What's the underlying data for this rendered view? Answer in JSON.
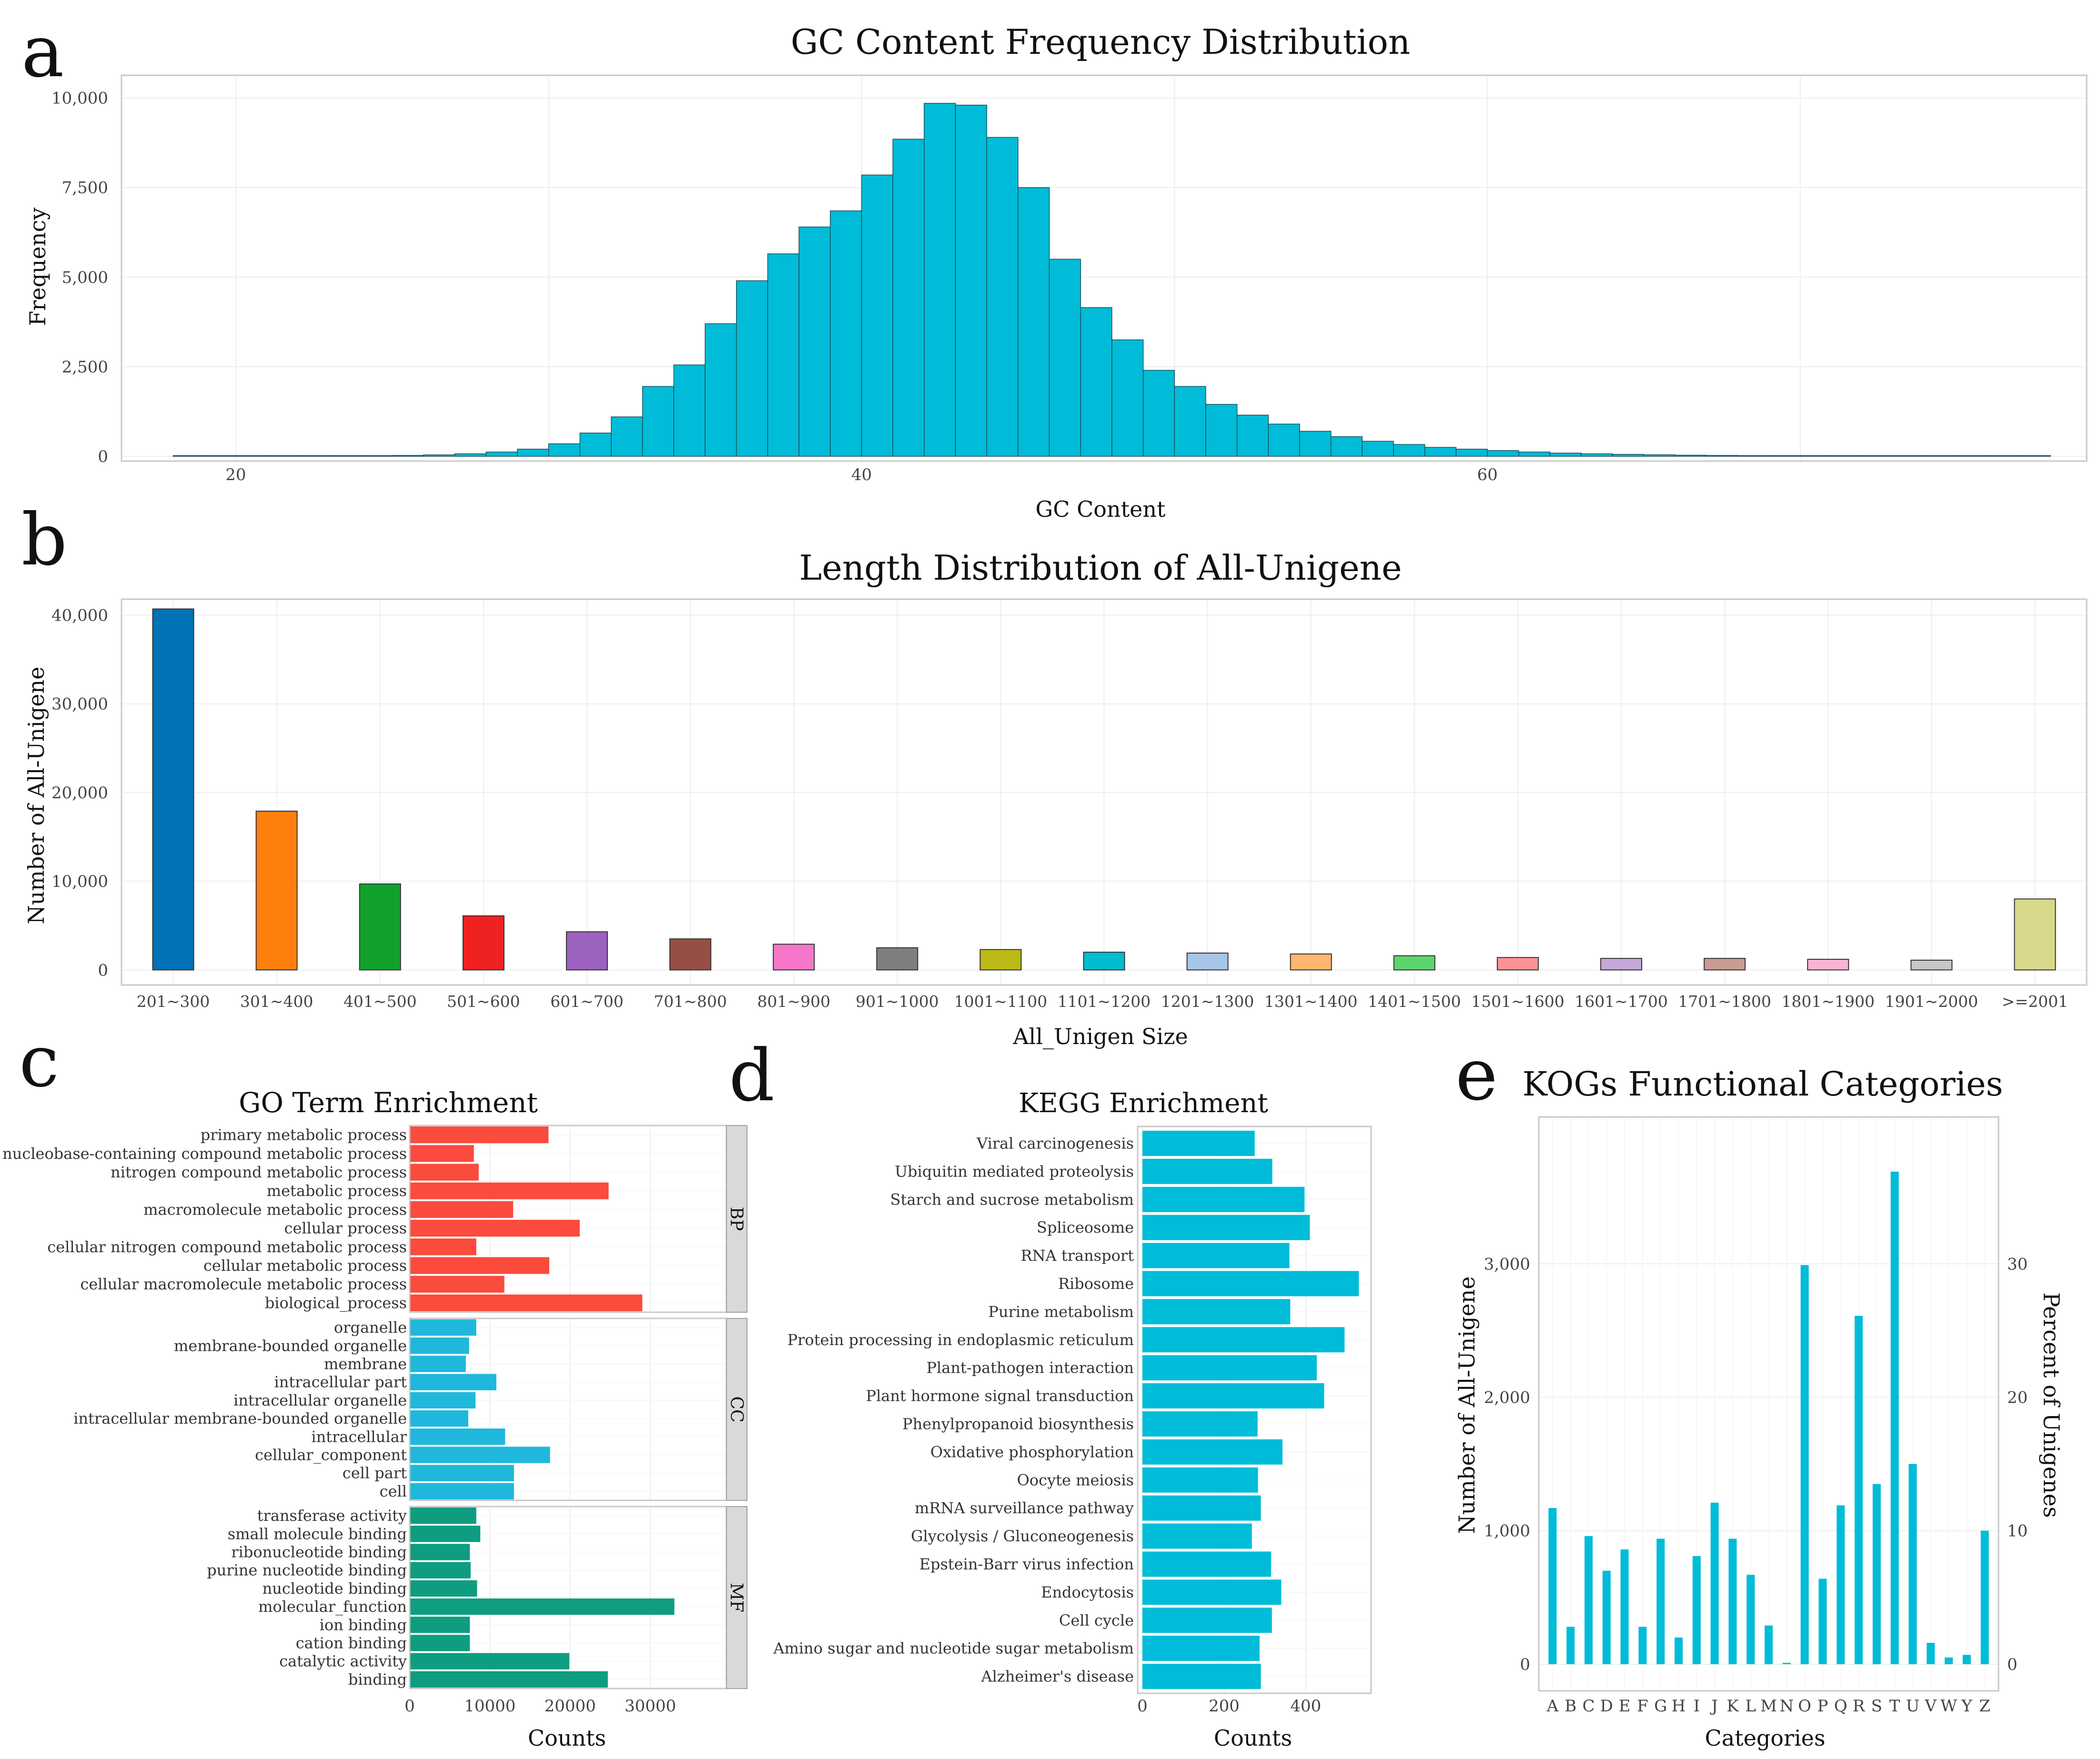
{
  "panel_labels": [
    "a",
    "b",
    "c",
    "d",
    "e"
  ],
  "colors": {
    "cyan": "#00BCD8",
    "bp": "#FB4B3C",
    "cc": "#1FB8DC",
    "mf": "#0E9D80",
    "frame": "#C8C8C8",
    "length_bars": [
      "#0072B5",
      "#FF7F0E",
      "#12A22C",
      "#EF2121",
      "#9D61C0",
      "#984F43",
      "#F677C9",
      "#7F7F7F",
      "#BBBA16",
      "#00BDCF",
      "#A6C5E8",
      "#FFB86E",
      "#5CD56D",
      "#FF9393",
      "#C3A8D8",
      "#C99C93",
      "#F8B5D3",
      "#C7C7C7",
      "#D9D98B"
    ]
  },
  "chart_data": [
    {
      "id": "a",
      "type": "bar",
      "title": "GC Content Frequency Distribution",
      "xlabel": "GC Content",
      "ylabel": "Frequency",
      "xlim": [
        16.5,
        79
      ],
      "ylim": [
        0,
        10500
      ],
      "x_ticks": [
        20,
        40,
        60
      ],
      "y_ticks": [
        0,
        2500,
        5000,
        7500,
        10000
      ],
      "y_tick_labels": [
        "0",
        "2,500",
        "5,000",
        "7,500",
        "10,000"
      ],
      "bin_width": 1,
      "bin_starts": [
        18,
        19,
        20,
        21,
        22,
        23,
        24,
        25,
        26,
        27,
        28,
        29,
        30,
        31,
        32,
        33,
        34,
        35,
        36,
        37,
        38,
        39,
        40,
        41,
        42,
        43,
        44,
        45,
        46,
        47,
        48,
        49,
        50,
        51,
        52,
        53,
        54,
        55,
        56,
        57,
        58,
        59,
        60,
        61,
        62,
        63,
        64,
        65,
        66,
        67,
        68,
        69,
        70,
        71,
        72,
        73,
        74,
        75,
        76,
        77
      ],
      "values": [
        2,
        3,
        3,
        5,
        8,
        10,
        15,
        25,
        40,
        70,
        120,
        200,
        350,
        650,
        1100,
        1950,
        2550,
        3700,
        4900,
        5650,
        6400,
        6850,
        7850,
        8850,
        9850,
        9800,
        8900,
        7500,
        5500,
        4150,
        3250,
        2400,
        1950,
        1450,
        1150,
        900,
        700,
        550,
        420,
        330,
        250,
        200,
        160,
        120,
        90,
        70,
        55,
        42,
        32,
        25,
        20,
        15,
        12,
        9,
        7,
        5,
        4,
        3,
        2,
        2
      ]
    },
    {
      "id": "b",
      "type": "bar",
      "title": "Length Distribution of All-Unigene",
      "xlabel": "All_Unigen Size",
      "ylabel": "Number of All-Unigene",
      "ylim": [
        -1700,
        41800
      ],
      "y_ticks": [
        0,
        10000,
        20000,
        30000,
        40000
      ],
      "y_tick_labels": [
        "0",
        "10,000",
        "20,000",
        "30,000",
        "40,000"
      ],
      "categories": [
        "201~300",
        "301~400",
        "401~500",
        "501~600",
        "601~700",
        "701~800",
        "801~900",
        "901~1000",
        "1001~1100",
        "1101~1200",
        "1201~1300",
        "1301~1400",
        "1401~1500",
        "1501~1600",
        "1601~1700",
        "1701~1800",
        "1801~1900",
        "1901~2000",
        ">=2001"
      ],
      "values": [
        40700,
        17900,
        9700,
        6100,
        4300,
        3500,
        2900,
        2500,
        2300,
        2000,
        1900,
        1800,
        1600,
        1400,
        1300,
        1300,
        1200,
        1100,
        8000
      ]
    },
    {
      "id": "c",
      "type": "bar",
      "orientation": "horizontal",
      "title": "GO Term Enrichment",
      "xlabel": "Counts",
      "xlim": [
        0,
        39500
      ],
      "x_ticks": [
        0,
        10000,
        20000,
        30000
      ],
      "x_tick_labels": [
        "0",
        "10000",
        "20000",
        "30000"
      ],
      "facets": [
        {
          "name": "BP",
          "categories": [
            "primary metabolic process",
            "nucleobase-containing compound metabolic process",
            "nitrogen compound metabolic process",
            "metabolic process",
            "macromolecule metabolic process",
            "cellular process",
            "cellular nitrogen compound metabolic process",
            "cellular metabolic process",
            "cellular macromolecule metabolic process",
            "biological_process"
          ],
          "values": [
            17300,
            8000,
            8600,
            24800,
            12900,
            21200,
            8300,
            17400,
            11800,
            29000
          ]
        },
        {
          "name": "CC",
          "categories": [
            "organelle",
            "membrane-bounded organelle",
            "membrane",
            "intracellular part",
            "intracellular organelle",
            "intracellular membrane-bounded organelle",
            "intracellular",
            "cellular_component",
            "cell part",
            "cell"
          ],
          "values": [
            8300,
            7400,
            7000,
            10800,
            8200,
            7300,
            11900,
            17500,
            13000,
            13000
          ]
        },
        {
          "name": "MF",
          "categories": [
            "transferase activity",
            "small molecule binding",
            "ribonucleotide binding",
            "purine nucleotide binding",
            "nucleotide binding",
            "molecular_function",
            "ion binding",
            "cation binding",
            "catalytic activity",
            "binding"
          ],
          "values": [
            8300,
            8800,
            7500,
            7600,
            8400,
            33000,
            7500,
            7500,
            19900,
            24700
          ]
        }
      ]
    },
    {
      "id": "d",
      "type": "bar",
      "orientation": "horizontal",
      "title": "KEGG Enrichment",
      "xlabel": "Counts",
      "xlim": [
        0,
        560
      ],
      "x_ticks": [
        0,
        200,
        400
      ],
      "categories": [
        "Viral carcinogenesis",
        "Ubiquitin mediated proteolysis",
        "Starch and sucrose metabolism",
        "Spliceosome",
        "RNA transport",
        "Ribosome",
        "Purine metabolism",
        "Protein processing in endoplasmic reticulum",
        "Plant-pathogen interaction",
        "Plant hormone signal transduction",
        "Phenylpropanoid biosynthesis",
        "Oxidative phosphorylation",
        "Oocyte meiosis",
        "mRNA surveillance pathway",
        "Glycolysis / Gluconeogenesis",
        "Epstein-Barr virus infection",
        "Endocytosis",
        "Cell cycle",
        "Amino sugar and nucleotide sugar metabolism",
        "Alzheimer's disease"
      ],
      "values": [
        275,
        318,
        397,
        410,
        360,
        530,
        362,
        495,
        427,
        445,
        282,
        343,
        283,
        290,
        268,
        315,
        340,
        317,
        287,
        290
      ]
    },
    {
      "id": "e",
      "type": "bar",
      "title": "KOGs Functional Categories",
      "xlabel": "Categories",
      "ylabel": "Number of All-Unigene",
      "ylabel_right": "Percent of Unigenes",
      "ylim": [
        -200,
        4100
      ],
      "y_ticks": [
        0,
        1000,
        2000,
        3000
      ],
      "y_tick_labels": [
        "0",
        "1,000",
        "2,000",
        "3,000"
      ],
      "y2_ticks": [
        0,
        10,
        20,
        30
      ],
      "y2_per_unit": 100,
      "categories": [
        "A",
        "B",
        "C",
        "D",
        "E",
        "F",
        "G",
        "H",
        "I",
        "J",
        "K",
        "L",
        "M",
        "N",
        "O",
        "P",
        "Q",
        "R",
        "S",
        "T",
        "U",
        "V",
        "W",
        "Y",
        "Z"
      ],
      "values": [
        1170,
        280,
        960,
        700,
        860,
        280,
        940,
        200,
        810,
        1210,
        940,
        670,
        290,
        10,
        2990,
        640,
        1190,
        2610,
        1350,
        3690,
        1500,
        160,
        50,
        70,
        1000
      ]
    }
  ]
}
